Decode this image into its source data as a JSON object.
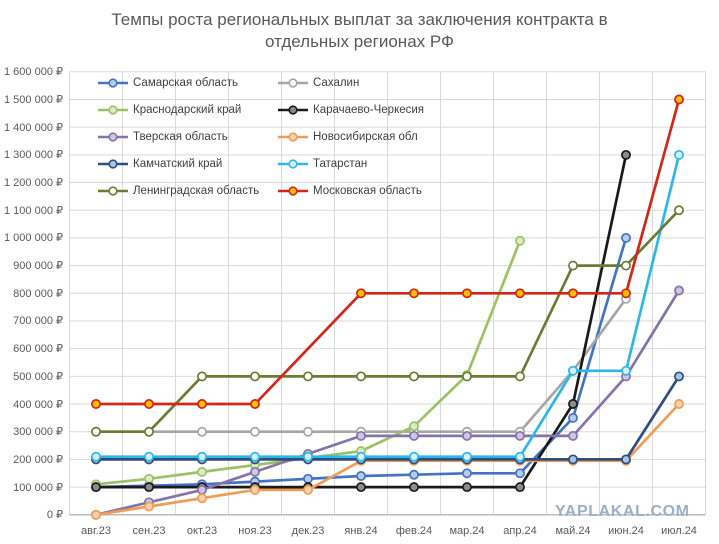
{
  "title": {
    "line1": "Темпы роста региональных выплат за заключения контракта в",
    "line2": "отдельных регионах РФ"
  },
  "watermark": "YAPLAKAL.COM",
  "chart_data": {
    "type": "line",
    "title": "Темпы роста региональных выплат за заключения контракта в отдельных регионах РФ",
    "categories": [
      "авг.23",
      "сен.23",
      "окт.23",
      "ноя.23",
      "дек.23",
      "янв.24",
      "фев.24",
      "мар.24",
      "апр.24",
      "май.24",
      "июн.24",
      "июл.24"
    ],
    "y_axis": {
      "min": 0,
      "max": 1600000,
      "step": 100000,
      "suffix": "₽"
    },
    "grid": true,
    "legend_position": "top-left-inside",
    "colors": {
      "gridline": "#d9d9d9",
      "axis": "#ababab",
      "label": "#595959",
      "legend_text": "#404040"
    },
    "series": [
      {
        "name": "Самарская область",
        "color": "#4472c4",
        "marker_fill": "#b8cce8",
        "values": [
          100000,
          105000,
          110000,
          120000,
          130000,
          140000,
          145000,
          150000,
          150000,
          350000,
          1000000,
          null
        ]
      },
      {
        "name": "Сахалин",
        "color": "#a6a6a6",
        "marker_fill": "#ffffff",
        "values": [
          300000,
          300000,
          300000,
          300000,
          300000,
          300000,
          300000,
          300000,
          300000,
          520000,
          780000,
          null
        ]
      },
      {
        "name": "Краснодарский край",
        "color": "#9cc265",
        "marker_fill": "#dceaca",
        "values": [
          110000,
          130000,
          155000,
          180000,
          205000,
          230000,
          320000,
          505000,
          990000,
          null,
          null,
          null
        ]
      },
      {
        "name": "Карачаево-Черкесия",
        "color": "#1a1a1a",
        "marker_fill": "#8c8c8c",
        "values": [
          100000,
          100000,
          100000,
          100000,
          100000,
          100000,
          100000,
          100000,
          100000,
          400000,
          1300000,
          null
        ]
      },
      {
        "name": "Тверская область",
        "color": "#8573a9",
        "marker_fill": "#cfc6e0",
        "values": [
          0,
          45000,
          90000,
          155000,
          220000,
          285000,
          285000,
          285000,
          285000,
          285000,
          500000,
          810000
        ]
      },
      {
        "name": "Новосибирская обл",
        "color": "#f09c55",
        "marker_fill": "#fad3ac",
        "values": [
          0,
          30000,
          60000,
          90000,
          90000,
          195000,
          195000,
          195000,
          195000,
          195000,
          195000,
          400000
        ]
      },
      {
        "name": "Камчатский край",
        "color": "#2f4e7d",
        "marker_fill": "#a9c4e4",
        "values": [
          200000,
          200000,
          200000,
          200000,
          200000,
          200000,
          200000,
          200000,
          200000,
          200000,
          200000,
          500000
        ]
      },
      {
        "name": "Татарстан",
        "color": "#2cb7e8",
        "marker_fill": "#d9f1fb",
        "values": [
          210000,
          210000,
          210000,
          210000,
          210000,
          210000,
          210000,
          210000,
          210000,
          520000,
          520000,
          1300000
        ]
      },
      {
        "name": "Ленинградская область",
        "color": "#6c7b33",
        "marker_fill": "#ffffff",
        "values": [
          300000,
          300000,
          500000,
          500000,
          500000,
          500000,
          500000,
          500000,
          500000,
          900000,
          900000,
          1100000
        ]
      },
      {
        "name": "Московская область",
        "color": "#d22619",
        "marker_fill": "#ffc000",
        "values": [
          400000,
          400000,
          400000,
          400000,
          null,
          800000,
          800000,
          800000,
          800000,
          800000,
          800000,
          1500000
        ]
      }
    ],
    "legend_columns": [
      [
        0,
        2,
        4,
        6,
        8
      ],
      [
        1,
        3,
        5,
        7,
        9
      ]
    ]
  }
}
